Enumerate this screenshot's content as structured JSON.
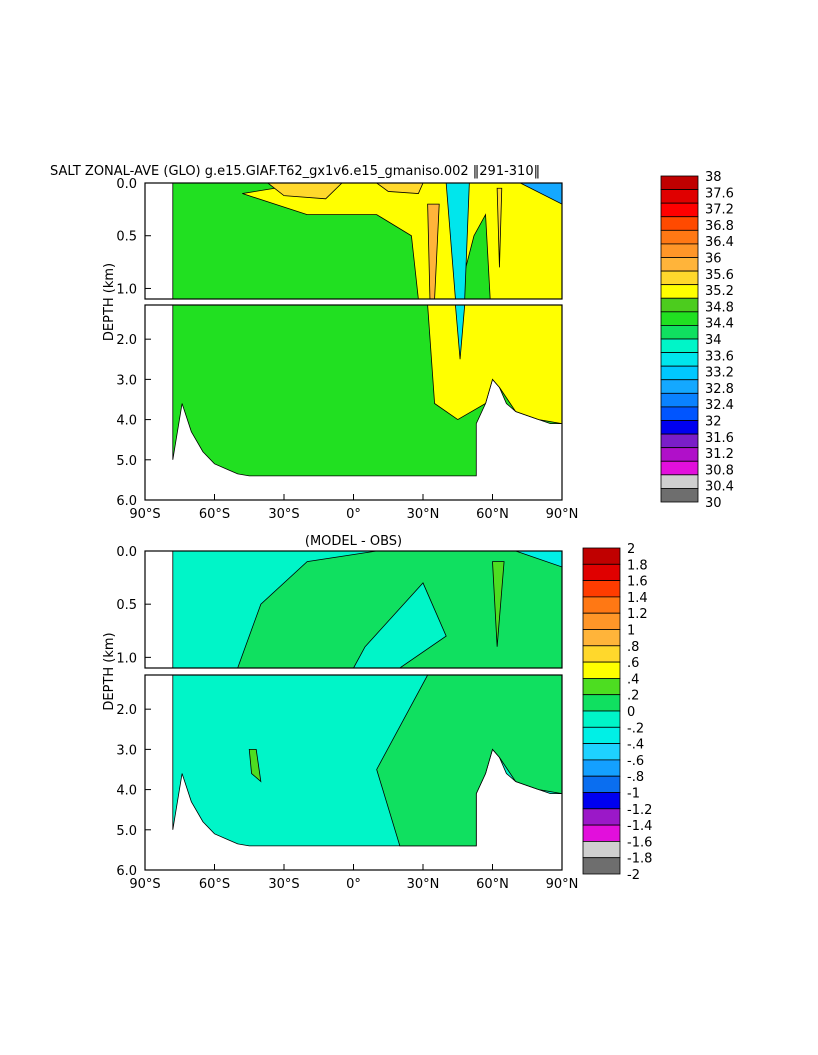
{
  "chart_data": [
    {
      "type": "heatmap",
      "title": "SALT ZONAL-AVE (GLO) g.e15.GIAF.T62_gx1v6.e15_gmaniso.002",
      "year_range": "291-310",
      "ylabel": "DEPTH (km)",
      "x_ticks": [
        "90°S",
        "60°S",
        "30°S",
        "0°",
        "30°N",
        "60°N",
        "90°N"
      ],
      "upper_y_ticks": [
        "0.0",
        "0.5",
        "1.0"
      ],
      "lower_y_ticks": [
        "2.0",
        "3.0",
        "4.0",
        "5.0",
        "6.0"
      ],
      "xlim": [
        -90,
        90
      ],
      "ylim_upper": [
        0,
        1.1
      ],
      "ylim_lower": [
        1.15,
        6.0
      ],
      "colorbar_levels": [
        "30",
        "30.4",
        "30.8",
        "31.2",
        "31.6",
        "32",
        "32.4",
        "32.8",
        "33.2",
        "33.6",
        "34",
        "34.4",
        "34.8",
        "35.2",
        "35.6",
        "36",
        "36.4",
        "36.8",
        "37.2",
        "37.6",
        "38"
      ],
      "colorbar_colors": [
        "#6e6e6e",
        "#cfcfcf",
        "#e20fdc",
        "#b010c9",
        "#7a1ec8",
        "#0000f0",
        "#0055ff",
        "#0a82ff",
        "#14a8ff",
        "#00c8ff",
        "#00e6ec",
        "#00f5c8",
        "#10e060",
        "#21e021",
        "#4ccc1e",
        "#ffff00",
        "#ffd82c",
        "#ffb43a",
        "#ff9628",
        "#ff7814",
        "#ff4a00",
        "#ff0000",
        "#e00000",
        "#c00000"
      ]
    },
    {
      "type": "heatmap",
      "title": "(MODEL - OBS)",
      "ylabel": "DEPTH (km)",
      "x_ticks": [
        "90°S",
        "60°S",
        "30°S",
        "0°",
        "30°N",
        "60°N",
        "90°N"
      ],
      "upper_y_ticks": [
        "0.0",
        "0.5",
        "1.0"
      ],
      "lower_y_ticks": [
        "2.0",
        "3.0",
        "4.0",
        "5.0",
        "6.0"
      ],
      "xlim": [
        -90,
        90
      ],
      "ylim_upper": [
        0,
        1.1
      ],
      "ylim_lower": [
        1.15,
        6.0
      ],
      "colorbar_levels": [
        "-2",
        "-1.8",
        "-1.6",
        "-1.4",
        "-1.2",
        "-1",
        "-.8",
        "-.6",
        "-.4",
        "-.2",
        "0",
        ".2",
        ".4",
        ".6",
        ".8",
        "1",
        "1.2",
        "1.4",
        "1.6",
        "1.8",
        "2"
      ],
      "colorbar_colors": [
        "#6e6e6e",
        "#cfcfcf",
        "#e20fdc",
        "#9b18c8",
        "#0000f0",
        "#0a6ef0",
        "#14a0ff",
        "#1ed2ff",
        "#00f0e6",
        "#00f5c8",
        "#10e060",
        "#4ddd21",
        "#ffff00",
        "#ffd82c",
        "#ffb43a",
        "#ff9628",
        "#ff7814",
        "#ff3c00",
        "#e00000",
        "#c00000"
      ]
    }
  ]
}
